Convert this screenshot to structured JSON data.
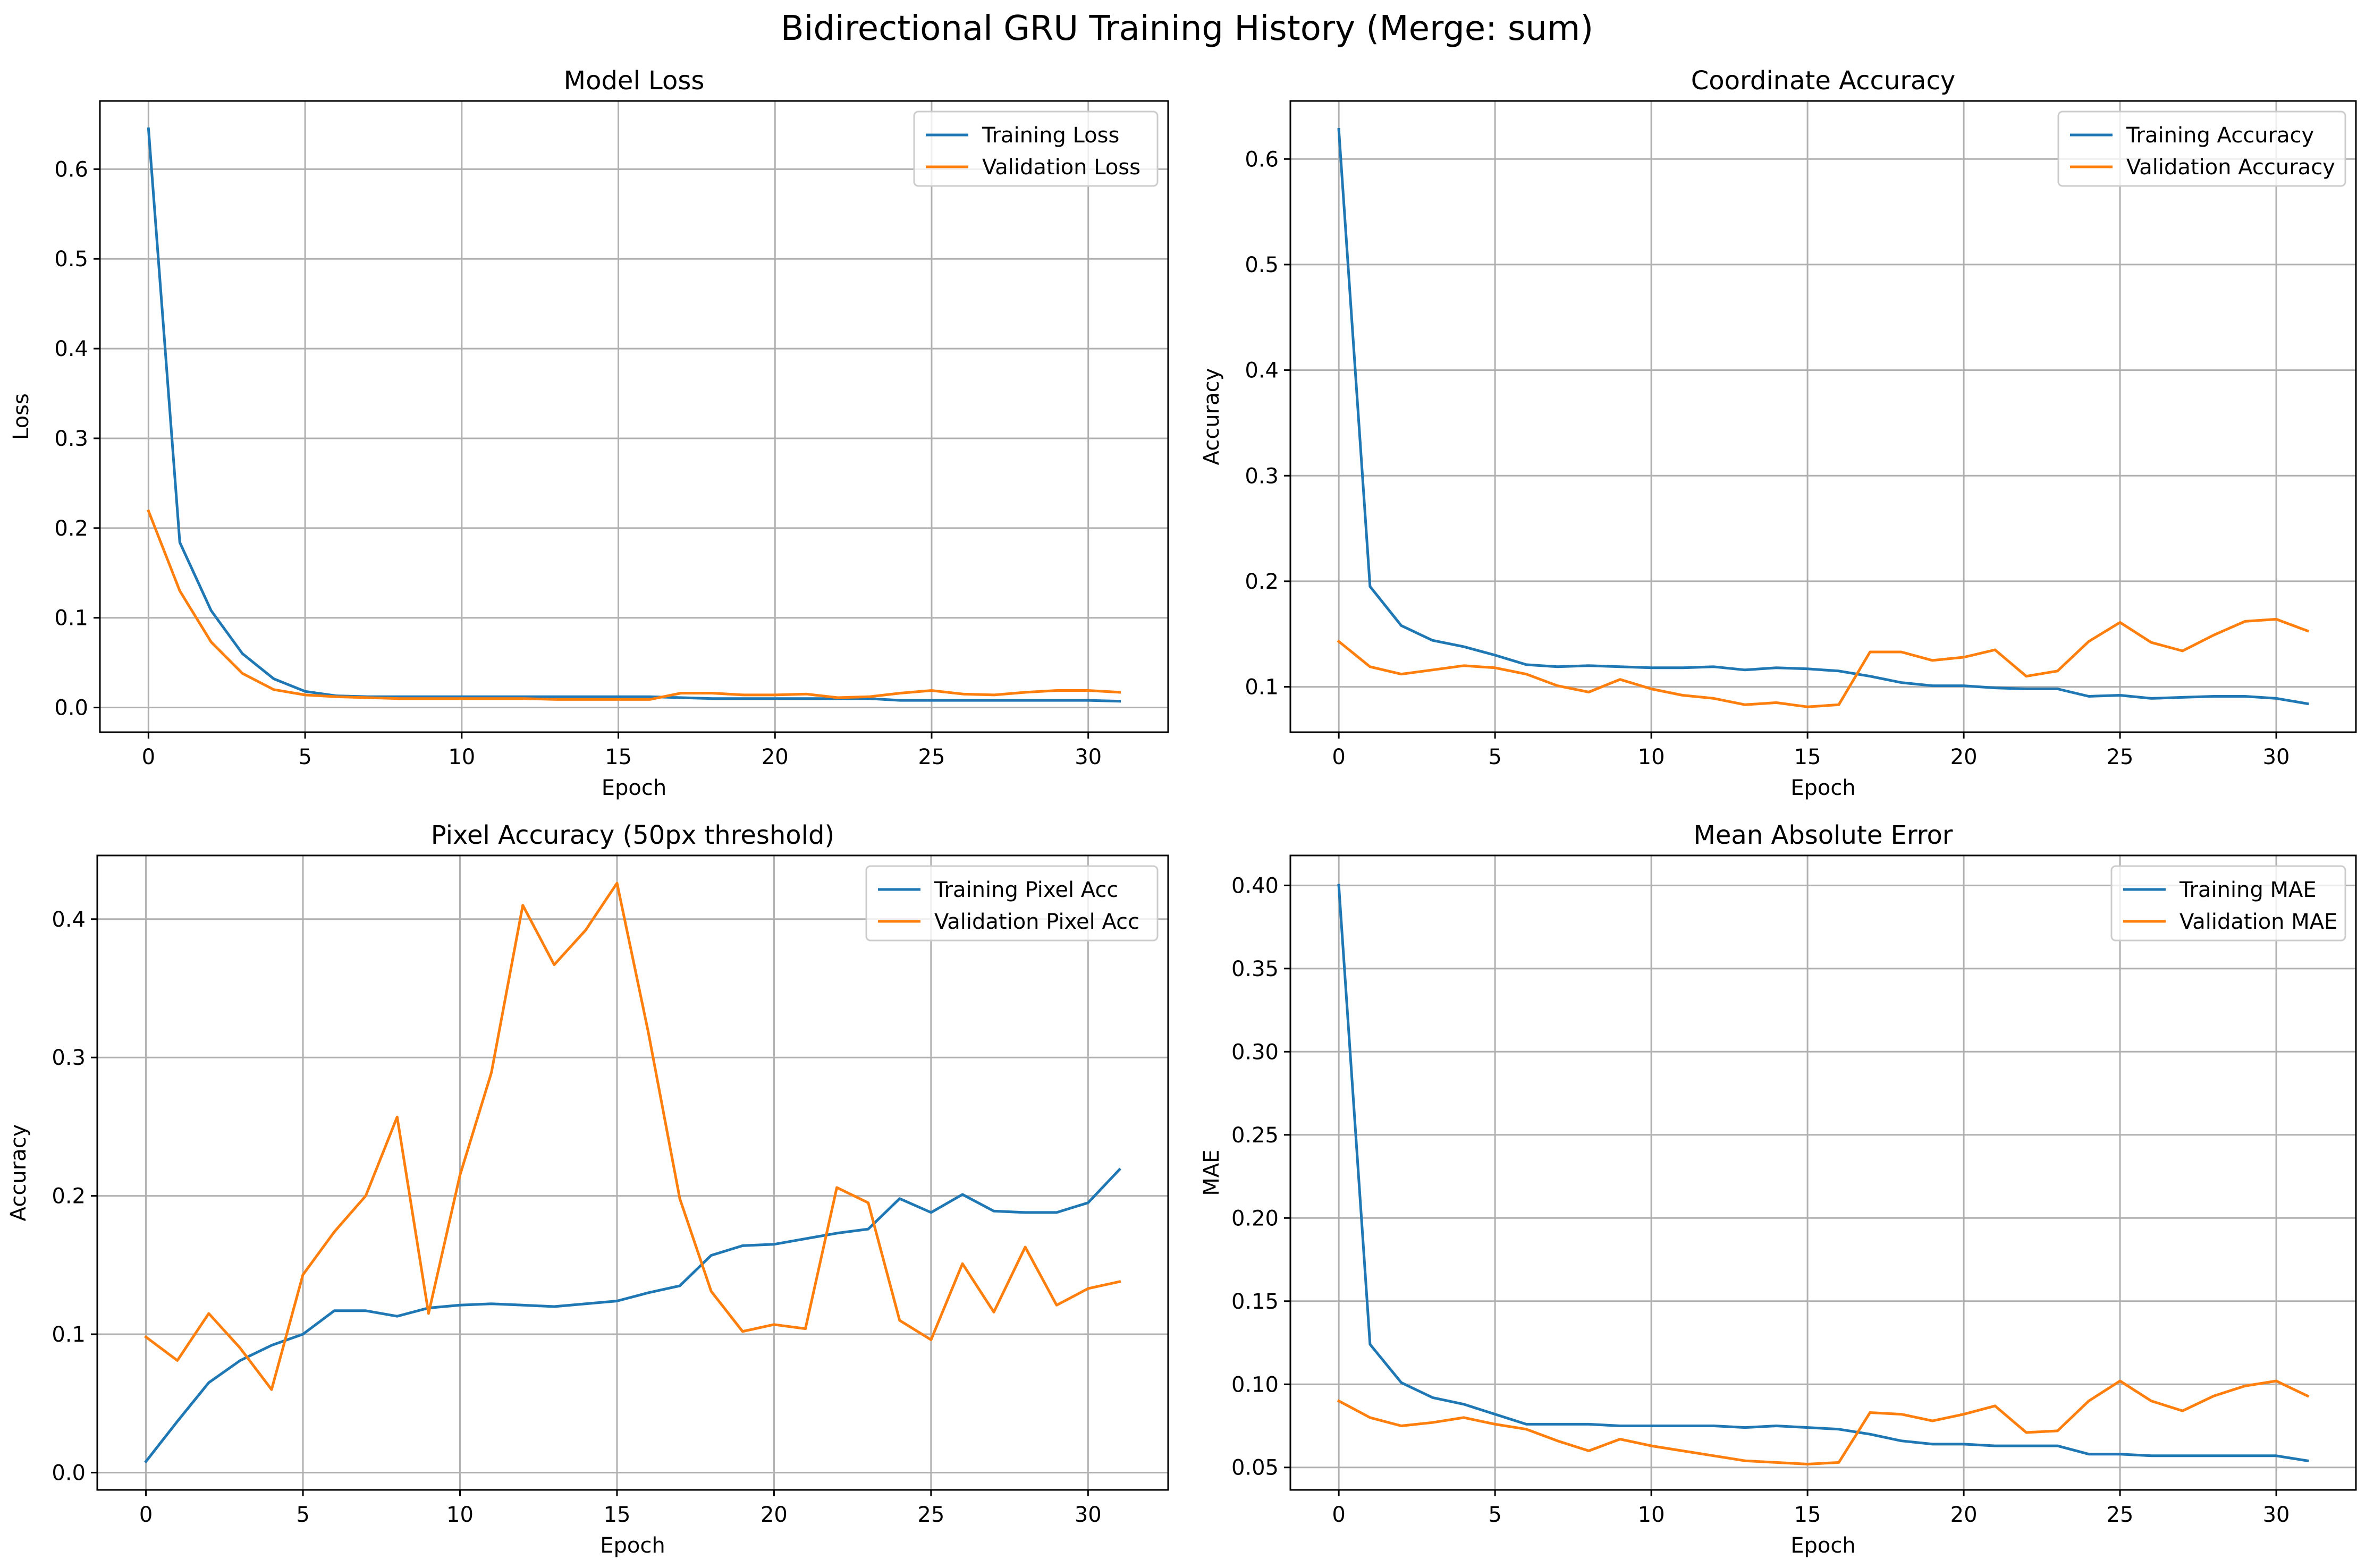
{
  "figure": {
    "title": "Bidirectional GRU Training History (Merge: sum)"
  },
  "chart_data": [
    {
      "type": "line",
      "title": "Model Loss",
      "xlabel": "Epoch",
      "ylabel": "Loss",
      "xlim": [
        -1.55,
        32.55
      ],
      "ylim": [
        -0.0275,
        0.676
      ],
      "xticks": [
        0,
        5,
        10,
        15,
        20,
        25,
        30
      ],
      "yticks": [
        0.0,
        0.1,
        0.2,
        0.3,
        0.4,
        0.5,
        0.6
      ],
      "ytick_labels": [
        "0.0",
        "0.1",
        "0.2",
        "0.3",
        "0.4",
        "0.5",
        "0.6"
      ],
      "grid": true,
      "legend_position": "upper right",
      "x": [
        0,
        1,
        2,
        3,
        4,
        5,
        6,
        7,
        8,
        9,
        10,
        11,
        12,
        13,
        14,
        15,
        16,
        17,
        18,
        19,
        20,
        21,
        22,
        23,
        24,
        25,
        26,
        27,
        28,
        29,
        30,
        31
      ],
      "series": [
        {
          "name": "Training Loss",
          "color": "#1f77b4",
          "values": [
            0.645,
            0.184,
            0.108,
            0.06,
            0.032,
            0.018,
            0.013,
            0.012,
            0.012,
            0.012,
            0.012,
            0.012,
            0.012,
            0.012,
            0.012,
            0.012,
            0.012,
            0.011,
            0.01,
            0.01,
            0.01,
            0.01,
            0.01,
            0.01,
            0.008,
            0.008,
            0.008,
            0.008,
            0.008,
            0.008,
            0.008,
            0.007
          ]
        },
        {
          "name": "Validation Loss",
          "color": "#ff7f0e",
          "values": [
            0.219,
            0.13,
            0.073,
            0.038,
            0.02,
            0.014,
            0.012,
            0.011,
            0.01,
            0.01,
            0.01,
            0.01,
            0.01,
            0.009,
            0.009,
            0.009,
            0.009,
            0.016,
            0.016,
            0.014,
            0.014,
            0.015,
            0.011,
            0.012,
            0.016,
            0.019,
            0.015,
            0.014,
            0.017,
            0.019,
            0.019,
            0.017
          ]
        }
      ]
    },
    {
      "type": "line",
      "title": "Coordinate Accuracy",
      "xlabel": "Epoch",
      "ylabel": "Accuracy",
      "xlim": [
        -1.55,
        32.55
      ],
      "ylim": [
        0.057,
        0.655
      ],
      "xticks": [
        0,
        5,
        10,
        15,
        20,
        25,
        30
      ],
      "yticks": [
        0.1,
        0.2,
        0.3,
        0.4,
        0.5,
        0.6
      ],
      "ytick_labels": [
        "0.1",
        "0.2",
        "0.3",
        "0.4",
        "0.5",
        "0.6"
      ],
      "grid": true,
      "legend_position": "upper right",
      "x": [
        0,
        1,
        2,
        3,
        4,
        5,
        6,
        7,
        8,
        9,
        10,
        11,
        12,
        13,
        14,
        15,
        16,
        17,
        18,
        19,
        20,
        21,
        22,
        23,
        24,
        25,
        26,
        27,
        28,
        29,
        30,
        31
      ],
      "series": [
        {
          "name": "Training Accuracy",
          "color": "#1f77b4",
          "values": [
            0.628,
            0.195,
            0.158,
            0.144,
            0.138,
            0.13,
            0.121,
            0.119,
            0.12,
            0.119,
            0.118,
            0.118,
            0.119,
            0.116,
            0.118,
            0.117,
            0.115,
            0.11,
            0.104,
            0.101,
            0.101,
            0.099,
            0.098,
            0.098,
            0.091,
            0.092,
            0.089,
            0.09,
            0.091,
            0.091,
            0.089,
            0.084
          ]
        },
        {
          "name": "Validation Accuracy",
          "color": "#ff7f0e",
          "values": [
            0.143,
            0.119,
            0.112,
            0.116,
            0.12,
            0.118,
            0.112,
            0.101,
            0.095,
            0.107,
            0.098,
            0.092,
            0.089,
            0.083,
            0.085,
            0.081,
            0.083,
            0.133,
            0.133,
            0.125,
            0.128,
            0.135,
            0.11,
            0.115,
            0.143,
            0.161,
            0.142,
            0.134,
            0.149,
            0.162,
            0.164,
            0.153
          ]
        }
      ]
    },
    {
      "type": "line",
      "title": "Pixel Accuracy (50px threshold)",
      "xlabel": "Epoch",
      "ylabel": "Accuracy",
      "xlim": [
        -1.55,
        32.55
      ],
      "ylim": [
        -0.0125,
        0.446
      ],
      "xticks": [
        0,
        5,
        10,
        15,
        20,
        25,
        30
      ],
      "yticks": [
        0.0,
        0.1,
        0.2,
        0.3,
        0.4
      ],
      "ytick_labels": [
        "0.0",
        "0.1",
        "0.2",
        "0.3",
        "0.4"
      ],
      "grid": true,
      "legend_position": "upper right",
      "x": [
        0,
        1,
        2,
        3,
        4,
        5,
        6,
        7,
        8,
        9,
        10,
        11,
        12,
        13,
        14,
        15,
        16,
        17,
        18,
        19,
        20,
        21,
        22,
        23,
        24,
        25,
        26,
        27,
        28,
        29,
        30,
        31
      ],
      "series": [
        {
          "name": "Training Pixel Acc",
          "color": "#1f77b4",
          "values": [
            0.008,
            0.037,
            0.065,
            0.081,
            0.092,
            0.1,
            0.117,
            0.117,
            0.113,
            0.119,
            0.121,
            0.122,
            0.121,
            0.12,
            0.122,
            0.124,
            0.13,
            0.135,
            0.157,
            0.164,
            0.165,
            0.169,
            0.173,
            0.176,
            0.198,
            0.188,
            0.201,
            0.189,
            0.188,
            0.188,
            0.195,
            0.219
          ]
        },
        {
          "name": "Validation Pixel Acc",
          "color": "#ff7f0e",
          "values": [
            0.098,
            0.081,
            0.115,
            0.09,
            0.06,
            0.143,
            0.174,
            0.2,
            0.257,
            0.115,
            0.215,
            0.289,
            0.41,
            0.367,
            0.392,
            0.426,
            0.318,
            0.198,
            0.131,
            0.102,
            0.107,
            0.104,
            0.206,
            0.195,
            0.11,
            0.096,
            0.151,
            0.116,
            0.163,
            0.121,
            0.133,
            0.138
          ]
        }
      ]
    },
    {
      "type": "line",
      "title": "Mean Absolute Error",
      "xlabel": "Epoch",
      "ylabel": "MAE",
      "xlim": [
        -1.55,
        32.55
      ],
      "ylim": [
        0.0365,
        0.418
      ],
      "xticks": [
        0,
        5,
        10,
        15,
        20,
        25,
        30
      ],
      "yticks": [
        0.05,
        0.1,
        0.15,
        0.2,
        0.25,
        0.3,
        0.35,
        0.4
      ],
      "ytick_labels": [
        "0.05",
        "0.10",
        "0.15",
        "0.20",
        "0.25",
        "0.30",
        "0.35",
        "0.40"
      ],
      "grid": true,
      "legend_position": "upper right",
      "x": [
        0,
        1,
        2,
        3,
        4,
        5,
        6,
        7,
        8,
        9,
        10,
        11,
        12,
        13,
        14,
        15,
        16,
        17,
        18,
        19,
        20,
        21,
        22,
        23,
        24,
        25,
        26,
        27,
        28,
        29,
        30,
        31
      ],
      "series": [
        {
          "name": "Training MAE",
          "color": "#1f77b4",
          "values": [
            0.4,
            0.124,
            0.101,
            0.092,
            0.088,
            0.082,
            0.076,
            0.076,
            0.076,
            0.075,
            0.075,
            0.075,
            0.075,
            0.074,
            0.075,
            0.074,
            0.073,
            0.07,
            0.066,
            0.064,
            0.064,
            0.063,
            0.063,
            0.063,
            0.058,
            0.058,
            0.057,
            0.057,
            0.057,
            0.057,
            0.057,
            0.054
          ]
        },
        {
          "name": "Validation MAE",
          "color": "#ff7f0e",
          "values": [
            0.09,
            0.08,
            0.075,
            0.077,
            0.08,
            0.076,
            0.073,
            0.066,
            0.06,
            0.067,
            0.063,
            0.06,
            0.057,
            0.054,
            0.053,
            0.052,
            0.053,
            0.083,
            0.082,
            0.078,
            0.082,
            0.087,
            0.071,
            0.072,
            0.09,
            0.102,
            0.09,
            0.084,
            0.093,
            0.099,
            0.102,
            0.093
          ]
        }
      ]
    }
  ]
}
